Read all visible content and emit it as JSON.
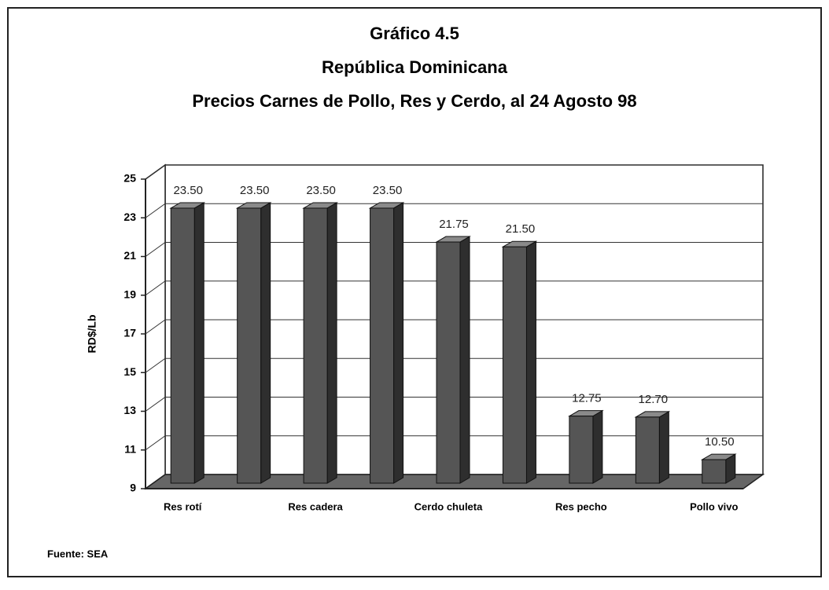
{
  "chart_data": {
    "type": "bar3d",
    "title_lines": [
      "Gráfico 4.5",
      "República Dominicana",
      "Precios Carnes de Pollo, Res y Cerdo, al 24 Agosto 98"
    ],
    "y_label": "RD$/Lb",
    "categories": [
      "Res rotí",
      null,
      "Res cadera",
      null,
      "Cerdo chuleta",
      null,
      "Res pecho",
      null,
      "Pollo vivo"
    ],
    "values": [
      23.5,
      23.5,
      23.5,
      23.5,
      21.75,
      21.5,
      12.75,
      12.7,
      10.5
    ],
    "value_labels": [
      "23.50",
      "23.50",
      "23.50",
      "23.50",
      "21.75",
      "21.50",
      "12.75",
      "12.70",
      "10.50"
    ],
    "color": "#555555",
    "ylim": [
      9,
      25
    ],
    "yticks": [
      9,
      11,
      13,
      15,
      17,
      19,
      21,
      23,
      25
    ],
    "grid": true,
    "source": "Fuente: SEA"
  }
}
